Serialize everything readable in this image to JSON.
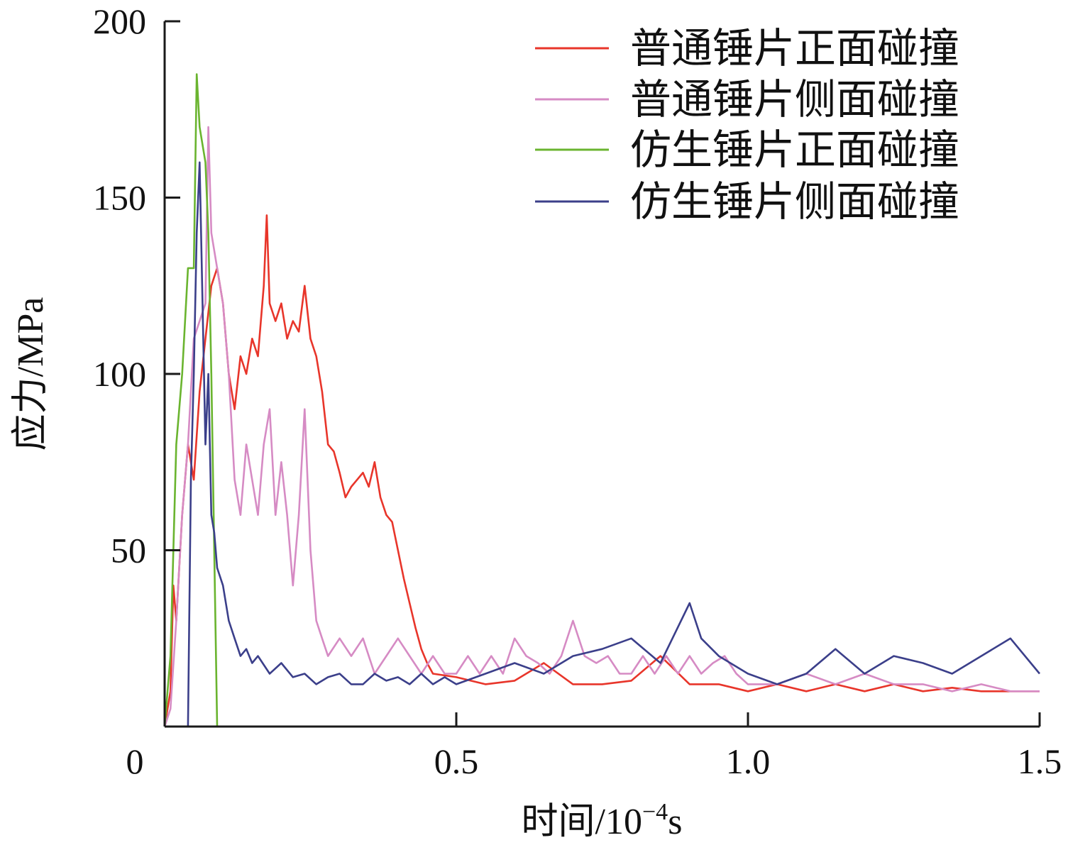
{
  "chart_data": {
    "type": "line",
    "xlabel": "时间/10⁻⁴s",
    "xlabel_parts": {
      "prefix": "时间/10",
      "exponent": "−4",
      "suffix": "s"
    },
    "ylabel": "应力/MPa",
    "xlim": [
      0,
      1.5
    ],
    "ylim": [
      0,
      200
    ],
    "x_ticks": [
      0,
      0.5,
      1.0,
      1.5
    ],
    "x_tick_labels": [
      "0",
      "0.5",
      "1.0",
      "1.5"
    ],
    "y_ticks": [
      50,
      100,
      150,
      200
    ],
    "y_tick_labels": [
      "50",
      "100",
      "150",
      "200"
    ],
    "grid": false,
    "legend_position": "top-right",
    "series": [
      {
        "name": "普通锤片正面碰撞",
        "color": "#e8352a",
        "points": [
          [
            0.0,
            0
          ],
          [
            0.01,
            10
          ],
          [
            0.015,
            40
          ],
          [
            0.02,
            30
          ],
          [
            0.03,
            60
          ],
          [
            0.04,
            80
          ],
          [
            0.05,
            70
          ],
          [
            0.06,
            95
          ],
          [
            0.07,
            110
          ],
          [
            0.08,
            125
          ],
          [
            0.09,
            130
          ],
          [
            0.1,
            120
          ],
          [
            0.11,
            100
          ],
          [
            0.12,
            90
          ],
          [
            0.13,
            105
          ],
          [
            0.14,
            100
          ],
          [
            0.15,
            110
          ],
          [
            0.16,
            105
          ],
          [
            0.17,
            125
          ],
          [
            0.175,
            145
          ],
          [
            0.18,
            120
          ],
          [
            0.19,
            115
          ],
          [
            0.2,
            120
          ],
          [
            0.21,
            110
          ],
          [
            0.22,
            115
          ],
          [
            0.23,
            112
          ],
          [
            0.24,
            125
          ],
          [
            0.25,
            110
          ],
          [
            0.26,
            105
          ],
          [
            0.27,
            95
          ],
          [
            0.28,
            80
          ],
          [
            0.29,
            78
          ],
          [
            0.3,
            72
          ],
          [
            0.31,
            65
          ],
          [
            0.32,
            68
          ],
          [
            0.33,
            70
          ],
          [
            0.34,
            72
          ],
          [
            0.35,
            68
          ],
          [
            0.36,
            75
          ],
          [
            0.37,
            65
          ],
          [
            0.38,
            60
          ],
          [
            0.39,
            58
          ],
          [
            0.4,
            50
          ],
          [
            0.41,
            42
          ],
          [
            0.42,
            35
          ],
          [
            0.43,
            28
          ],
          [
            0.44,
            22
          ],
          [
            0.45,
            18
          ],
          [
            0.46,
            15
          ],
          [
            0.5,
            14
          ],
          [
            0.55,
            12
          ],
          [
            0.6,
            13
          ],
          [
            0.65,
            18
          ],
          [
            0.7,
            12
          ],
          [
            0.75,
            12
          ],
          [
            0.8,
            13
          ],
          [
            0.85,
            20
          ],
          [
            0.9,
            12
          ],
          [
            0.95,
            12
          ],
          [
            1.0,
            10
          ],
          [
            1.05,
            12
          ],
          [
            1.1,
            10
          ],
          [
            1.15,
            12
          ],
          [
            1.2,
            10
          ],
          [
            1.25,
            12
          ],
          [
            1.3,
            10
          ],
          [
            1.35,
            11
          ],
          [
            1.4,
            10
          ],
          [
            1.45,
            10
          ],
          [
            1.5,
            10
          ]
        ]
      },
      {
        "name": "普通锤片侧面碰撞",
        "color": "#d68bc4",
        "points": [
          [
            0.0,
            0
          ],
          [
            0.01,
            5
          ],
          [
            0.02,
            30
          ],
          [
            0.03,
            60
          ],
          [
            0.04,
            80
          ],
          [
            0.05,
            110
          ],
          [
            0.06,
            115
          ],
          [
            0.07,
            120
          ],
          [
            0.075,
            170
          ],
          [
            0.08,
            140
          ],
          [
            0.09,
            130
          ],
          [
            0.1,
            120
          ],
          [
            0.11,
            100
          ],
          [
            0.12,
            70
          ],
          [
            0.13,
            60
          ],
          [
            0.14,
            80
          ],
          [
            0.15,
            70
          ],
          [
            0.16,
            60
          ],
          [
            0.17,
            80
          ],
          [
            0.18,
            90
          ],
          [
            0.19,
            60
          ],
          [
            0.2,
            75
          ],
          [
            0.21,
            60
          ],
          [
            0.22,
            40
          ],
          [
            0.23,
            60
          ],
          [
            0.24,
            90
          ],
          [
            0.25,
            50
          ],
          [
            0.26,
            30
          ],
          [
            0.27,
            25
          ],
          [
            0.28,
            20
          ],
          [
            0.3,
            25
          ],
          [
            0.32,
            20
          ],
          [
            0.34,
            25
          ],
          [
            0.36,
            15
          ],
          [
            0.38,
            20
          ],
          [
            0.4,
            25
          ],
          [
            0.42,
            20
          ],
          [
            0.44,
            15
          ],
          [
            0.46,
            20
          ],
          [
            0.48,
            15
          ],
          [
            0.5,
            15
          ],
          [
            0.52,
            20
          ],
          [
            0.54,
            15
          ],
          [
            0.56,
            20
          ],
          [
            0.58,
            15
          ],
          [
            0.6,
            25
          ],
          [
            0.62,
            20
          ],
          [
            0.64,
            18
          ],
          [
            0.66,
            15
          ],
          [
            0.68,
            20
          ],
          [
            0.7,
            30
          ],
          [
            0.72,
            20
          ],
          [
            0.74,
            18
          ],
          [
            0.76,
            20
          ],
          [
            0.78,
            15
          ],
          [
            0.8,
            15
          ],
          [
            0.82,
            20
          ],
          [
            0.84,
            15
          ],
          [
            0.86,
            20
          ],
          [
            0.88,
            15
          ],
          [
            0.9,
            20
          ],
          [
            0.92,
            15
          ],
          [
            0.94,
            18
          ],
          [
            0.96,
            20
          ],
          [
            0.98,
            15
          ],
          [
            1.0,
            12
          ],
          [
            1.05,
            12
          ],
          [
            1.1,
            15
          ],
          [
            1.15,
            12
          ],
          [
            1.2,
            15
          ],
          [
            1.25,
            12
          ],
          [
            1.3,
            12
          ],
          [
            1.35,
            10
          ],
          [
            1.4,
            12
          ],
          [
            1.45,
            10
          ],
          [
            1.5,
            10
          ]
        ]
      },
      {
        "name": "仿生锤片正面碰撞",
        "color": "#6ab42f",
        "points": [
          [
            0.0,
            0
          ],
          [
            0.01,
            20
          ],
          [
            0.02,
            80
          ],
          [
            0.03,
            100
          ],
          [
            0.04,
            130
          ],
          [
            0.05,
            130
          ],
          [
            0.055,
            185
          ],
          [
            0.06,
            170
          ],
          [
            0.07,
            160
          ],
          [
            0.075,
            140
          ],
          [
            0.08,
            100
          ],
          [
            0.085,
            50
          ],
          [
            0.09,
            0
          ],
          [
            0.1,
            0
          ],
          [
            1.5,
            0
          ]
        ]
      },
      {
        "name": "仿生锤片侧面碰撞",
        "color": "#3b3f8a",
        "points": [
          [
            0.0,
            0
          ],
          [
            0.04,
            0
          ],
          [
            0.045,
            70
          ],
          [
            0.05,
            100
          ],
          [
            0.055,
            140
          ],
          [
            0.06,
            160
          ],
          [
            0.065,
            120
          ],
          [
            0.07,
            80
          ],
          [
            0.075,
            100
          ],
          [
            0.08,
            60
          ],
          [
            0.085,
            55
          ],
          [
            0.09,
            45
          ],
          [
            0.1,
            40
          ],
          [
            0.11,
            30
          ],
          [
            0.12,
            25
          ],
          [
            0.13,
            20
          ],
          [
            0.14,
            22
          ],
          [
            0.15,
            18
          ],
          [
            0.16,
            20
          ],
          [
            0.18,
            15
          ],
          [
            0.2,
            18
          ],
          [
            0.22,
            14
          ],
          [
            0.24,
            15
          ],
          [
            0.26,
            12
          ],
          [
            0.28,
            14
          ],
          [
            0.3,
            15
          ],
          [
            0.32,
            12
          ],
          [
            0.34,
            12
          ],
          [
            0.36,
            15
          ],
          [
            0.38,
            13
          ],
          [
            0.4,
            14
          ],
          [
            0.42,
            12
          ],
          [
            0.44,
            15
          ],
          [
            0.46,
            12
          ],
          [
            0.48,
            14
          ],
          [
            0.5,
            12
          ],
          [
            0.55,
            15
          ],
          [
            0.6,
            18
          ],
          [
            0.65,
            15
          ],
          [
            0.7,
            20
          ],
          [
            0.75,
            22
          ],
          [
            0.8,
            25
          ],
          [
            0.85,
            18
          ],
          [
            0.9,
            35
          ],
          [
            0.92,
            25
          ],
          [
            0.95,
            20
          ],
          [
            1.0,
            15
          ],
          [
            1.05,
            12
          ],
          [
            1.1,
            15
          ],
          [
            1.15,
            22
          ],
          [
            1.2,
            15
          ],
          [
            1.25,
            20
          ],
          [
            1.3,
            18
          ],
          [
            1.35,
            15
          ],
          [
            1.4,
            20
          ],
          [
            1.45,
            25
          ],
          [
            1.5,
            15
          ]
        ]
      }
    ]
  }
}
